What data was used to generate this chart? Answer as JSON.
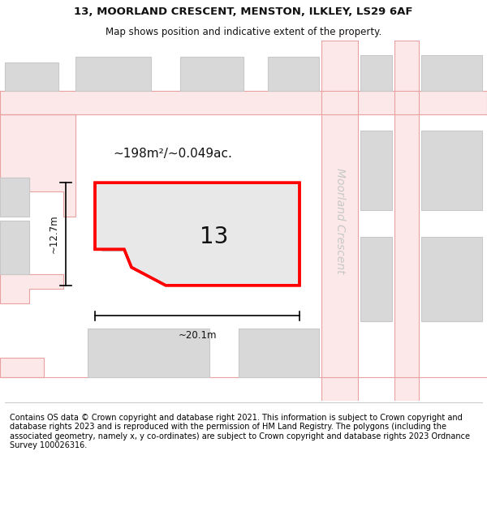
{
  "title_line1": "13, MOORLAND CRESCENT, MENSTON, ILKLEY, LS29 6AF",
  "title_line2": "Map shows position and indicative extent of the property.",
  "footer_text": "Contains OS data © Crown copyright and database right 2021. This information is subject to Crown copyright and database rights 2023 and is reproduced with the permission of HM Land Registry. The polygons (including the associated geometry, namely x, y co-ordinates) are subject to Crown copyright and database rights 2023 Ordnance Survey 100026316.",
  "street_label": "Moorland Crescent",
  "property_number": "13",
  "area_label": "~198m²/~0.049ac.",
  "width_label": "~20.1m",
  "height_label": "~12.7m",
  "map_bg": "#ffffff",
  "road_fill": "#fce8e8",
  "road_line": "#e8a0a0",
  "bld_fill": "#d8d8d8",
  "bld_edge": "#c8c8c8",
  "plot_fill": "#e8e8e8",
  "plot_outline": "#ff0000",
  "street_color": "#c8c8c8",
  "text_color": "#111111",
  "footer_sep_color": "#cccccc",
  "title_fontsize": 9.5,
  "subtitle_fontsize": 8.5,
  "footer_fontsize": 7.0,
  "area_fontsize": 11,
  "number_fontsize": 20,
  "dim_fontsize": 8.5,
  "street_fontsize": 10
}
